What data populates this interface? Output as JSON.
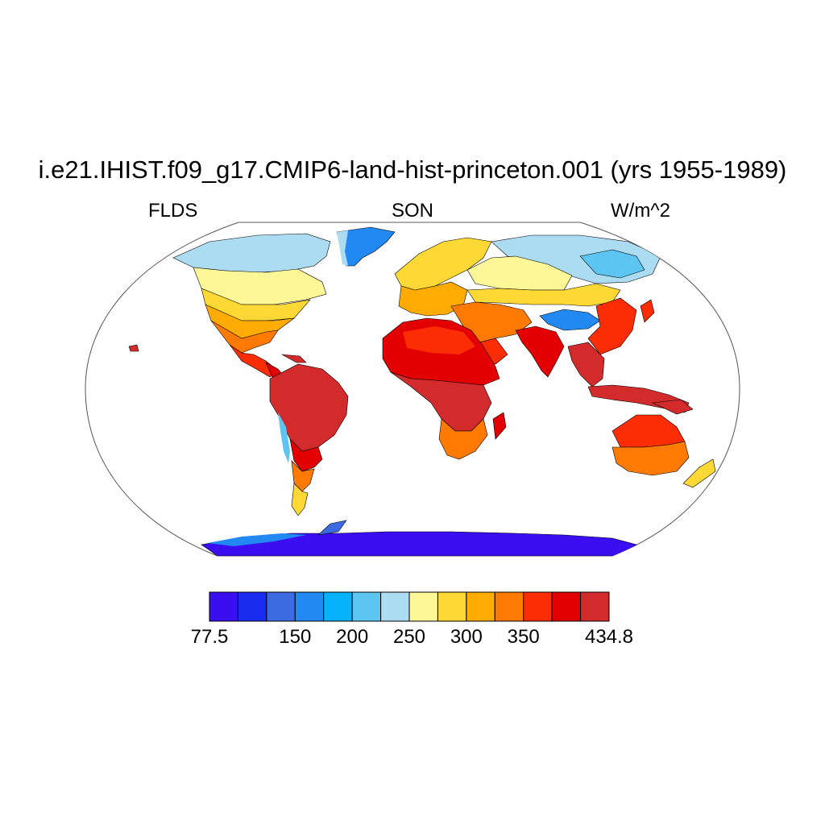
{
  "title": "i.e21.IHIST.f09_g17.CMIP6-land-hist-princeton.001 (yrs 1955-1989)",
  "variable": "FLDS",
  "season": "SON",
  "units": "W/m^2",
  "colorbar": {
    "colors": [
      "#3b0ef2",
      "#1a2cf0",
      "#3c6ae0",
      "#2389f2",
      "#06b3fa",
      "#5cc5f2",
      "#acdcf2",
      "#fdf798",
      "#fed935",
      "#feac03",
      "#fe7a03",
      "#fc2c04",
      "#e30002",
      "#d32a2b"
    ],
    "tick_labels": [
      "77.5",
      "150",
      "200",
      "250",
      "300",
      "350",
      "434.8"
    ],
    "tick_box_index": [
      0,
      3,
      5,
      7,
      9,
      11,
      14
    ]
  },
  "legend_colors": {
    "ocean": "#ffffff",
    "outline": "#000000"
  }
}
